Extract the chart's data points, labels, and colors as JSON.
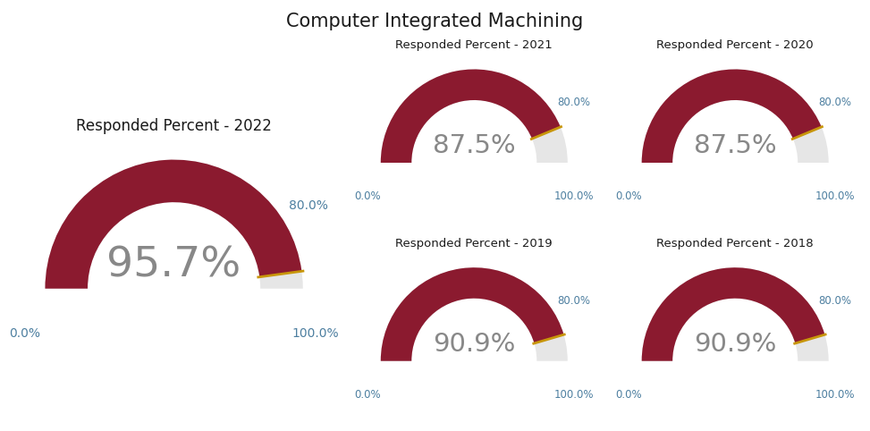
{
  "title": "Computer Integrated Machining",
  "title_fontsize": 15,
  "background_color": "#ffffff",
  "gauges": [
    {
      "label": "Responded Percent - 2022",
      "value": 95.7,
      "large": true
    },
    {
      "label": "Responded Percent - 2021",
      "value": 87.5,
      "large": false
    },
    {
      "label": "Responded Percent - 2020",
      "value": 87.5,
      "large": false
    },
    {
      "label": "Responded Percent - 2019",
      "value": 90.9,
      "large": false
    },
    {
      "label": "Responded Percent - 2018",
      "value": 90.9,
      "large": false
    }
  ],
  "arc_color": "#8B1A2F",
  "remainder_color": "#E6E6E6",
  "needle_color": "#C8960A",
  "label_color": "#1a1a1a",
  "title_text_color": "#1a1a1a",
  "center_value_color": "#888888",
  "tick_label_color": "#4d7fa0"
}
